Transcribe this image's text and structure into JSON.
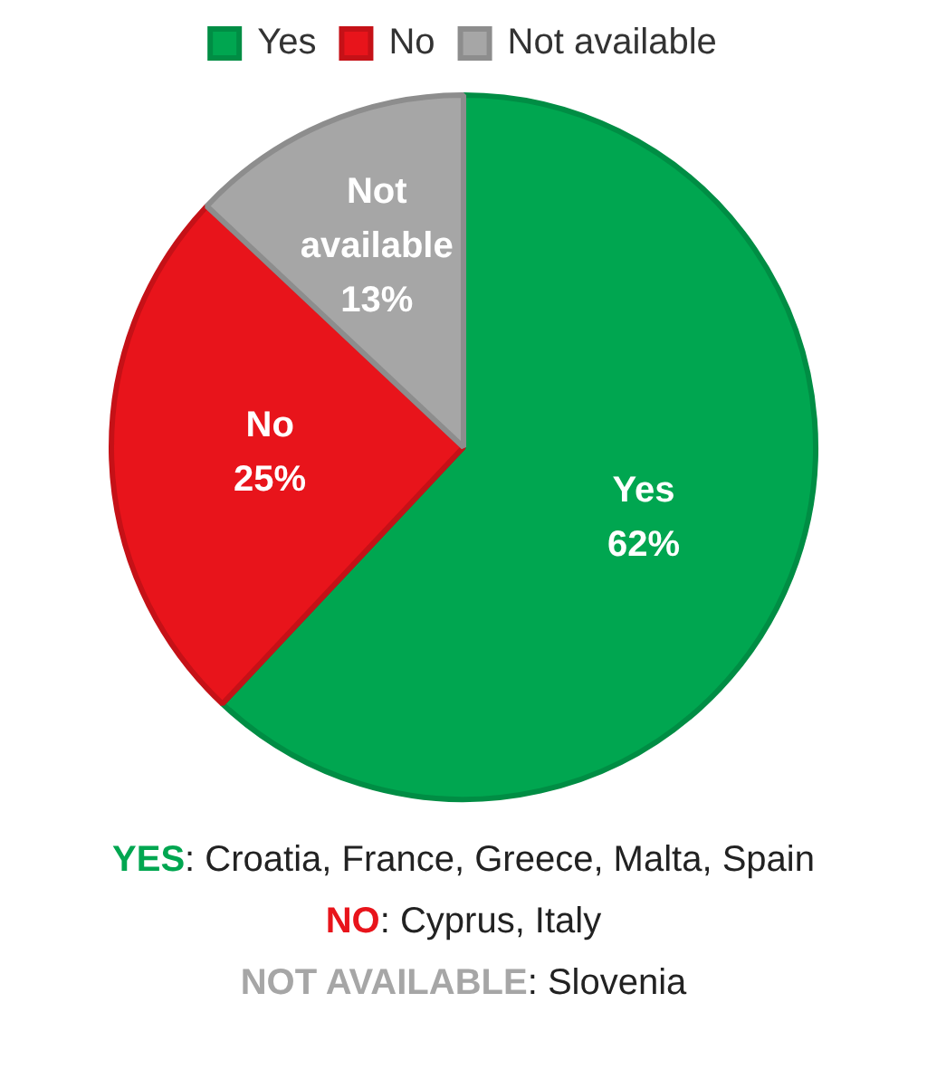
{
  "chart_data": {
    "type": "pie",
    "categories": [
      "Yes",
      "No",
      "Not available"
    ],
    "values": [
      62,
      25,
      13
    ],
    "colors": [
      "#00a650",
      "#e8141b",
      "#a6a6a6"
    ],
    "value_labels": [
      "62%",
      "25%",
      "13%"
    ],
    "legend": "top",
    "annotations": [
      "YES: Croatia, France, Greece, Malta, Spain",
      "NO: Cyprus, Italy",
      "NOT AVAILABLE: Slovenia"
    ]
  }
}
